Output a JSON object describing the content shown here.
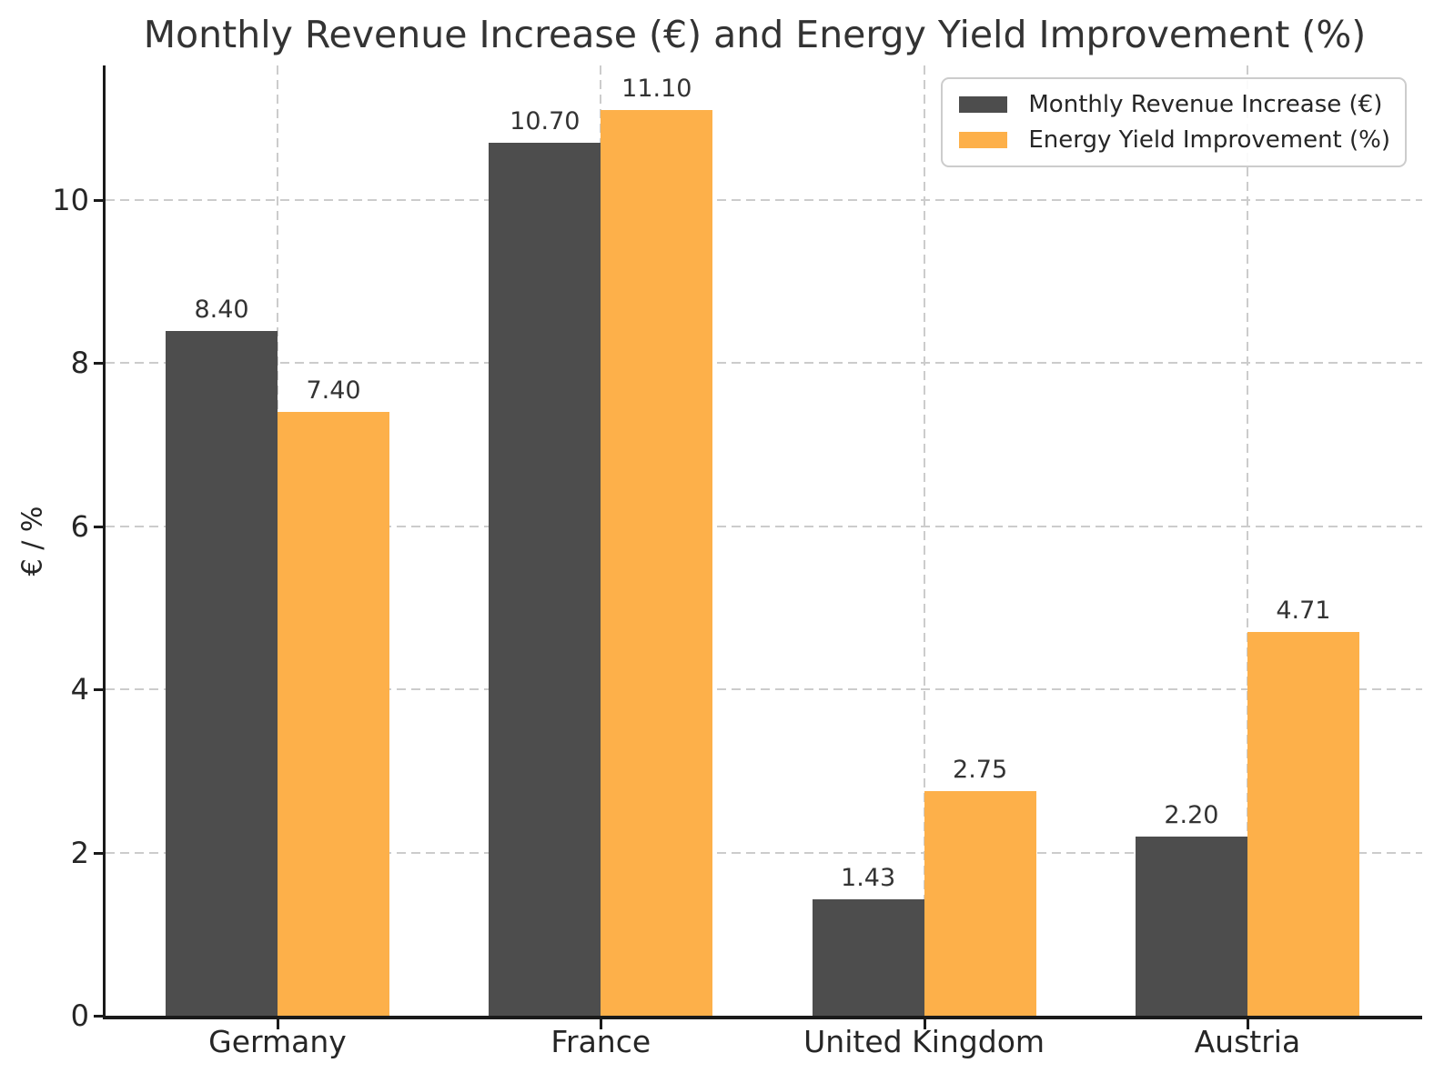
{
  "chart_data": {
    "type": "bar",
    "title": "Monthly Revenue Increase (€) and Energy Yield Improvement (%)",
    "categories": [
      "Germany",
      "France",
      "United Kingdom",
      "Austria"
    ],
    "series": [
      {
        "name": "Monthly Revenue Increase (€)",
        "color": "#4D4D4D",
        "values": [
          8.4,
          10.7,
          1.43,
          2.2
        ]
      },
      {
        "name": "Energy Yield Improvement (%)",
        "color": "#FDB04A",
        "values": [
          7.4,
          11.1,
          2.75,
          4.71
        ]
      }
    ],
    "value_labels": [
      [
        "8.40",
        "10.70",
        "1.43",
        "2.20"
      ],
      [
        "7.40",
        "11.10",
        "2.75",
        "4.71"
      ]
    ],
    "value_label_decimals": 2,
    "xlabel": "",
    "ylabel": "€ / %",
    "ylim": [
      0,
      11.65
    ],
    "yticks": [
      "0",
      "2",
      "4",
      "6",
      "8",
      "10"
    ],
    "grid": "dashed horizontal and vertical gridlines",
    "grid_color": "#cccccc",
    "legend_position": "upper right",
    "background_color": "#ffffff",
    "text_color": "#262626"
  }
}
